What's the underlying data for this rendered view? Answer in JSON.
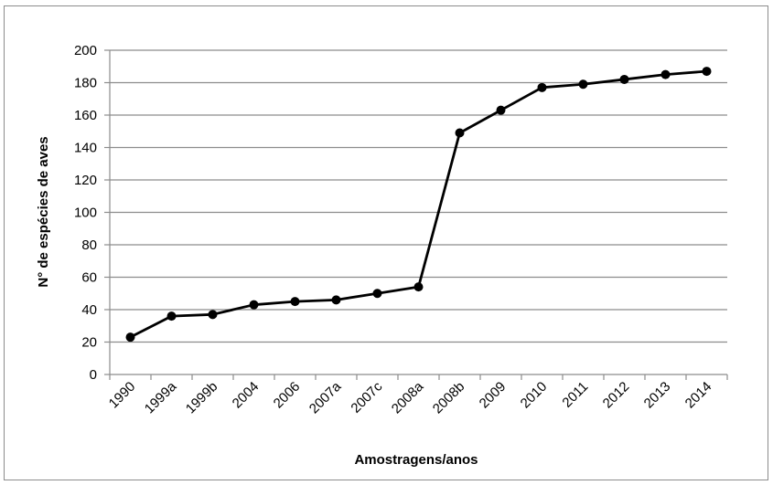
{
  "chart_data": {
    "type": "line",
    "title": "",
    "xlabel": "Amostragens/anos",
    "ylabel": "N° de espécies de aves",
    "categories": [
      "1990",
      "1999a",
      "1999b",
      "2004",
      "2006",
      "2007a",
      "2007c",
      "2008a",
      "2008b",
      "2009",
      "2010",
      "2011",
      "2012",
      "2013",
      "2014"
    ],
    "series": [
      {
        "values": [
          23,
          36,
          37,
          43,
          45,
          46,
          50,
          54,
          149,
          163,
          177,
          179,
          182,
          185,
          187
        ]
      }
    ],
    "ylim": [
      0,
      200
    ],
    "yticks": [
      0,
      20,
      40,
      60,
      80,
      100,
      120,
      140,
      160,
      180,
      200
    ],
    "grid": true,
    "line_color": "#000000",
    "grid_color": "#8c8c8c"
  }
}
